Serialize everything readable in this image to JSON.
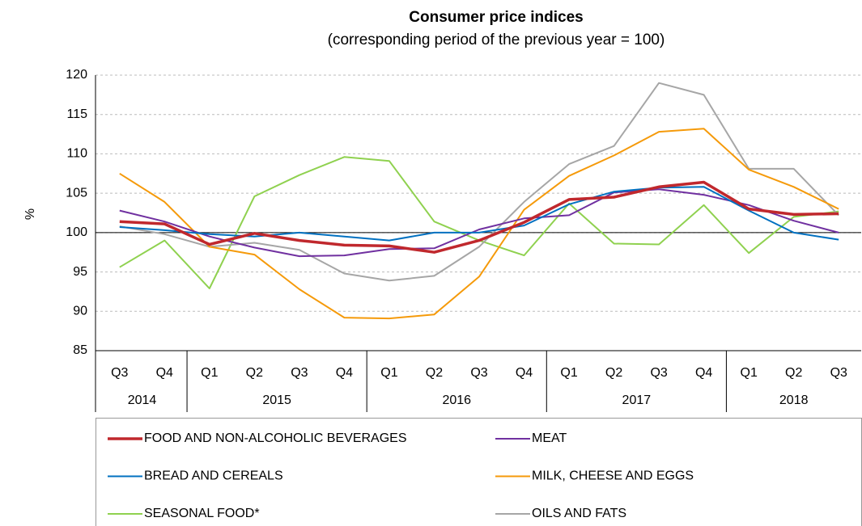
{
  "chart_data": {
    "type": "line",
    "title": "Consumer price indices",
    "subtitle": "(corresponding period of the previous year = 100)",
    "y_label": "%",
    "categories": [
      "Q3",
      "Q4",
      "Q1",
      "Q2",
      "Q3",
      "Q4",
      "Q1",
      "Q2",
      "Q3",
      "Q4",
      "Q1",
      "Q2",
      "Q3",
      "Q4",
      "Q1",
      "Q2",
      "Q3"
    ],
    "years": [
      "2014",
      "2015",
      "2016",
      "2017",
      "2018"
    ],
    "ylim": [
      85,
      120
    ],
    "yticks": [
      85,
      90,
      95,
      100,
      105,
      110,
      115,
      120
    ],
    "grid": true,
    "series": [
      {
        "name": "FOOD AND NON-ALCOHOLIC BEVERAGES",
        "color": "#c0282d",
        "values": [
          101.4,
          101.1,
          98.5,
          99.9,
          99.0,
          98.4,
          98.3,
          97.5,
          99.0,
          101.3,
          104.2,
          104.5,
          105.8,
          106.4,
          103.0,
          102.3,
          102.4
        ]
      },
      {
        "name": "MEAT",
        "color": "#7030a0",
        "values": [
          102.8,
          101.4,
          99.5,
          98.1,
          97.0,
          97.1,
          97.9,
          98.0,
          100.4,
          101.8,
          102.2,
          105.1,
          105.5,
          104.8,
          103.5,
          101.5,
          100.0
        ]
      },
      {
        "name": "BREAD AND CEREALS",
        "color": "#0070c0",
        "values": [
          100.7,
          100.3,
          99.8,
          99.5,
          100.0,
          99.5,
          99.0,
          100.0,
          100.0,
          100.9,
          103.6,
          105.2,
          105.7,
          105.8,
          102.8,
          100.0,
          99.1
        ]
      },
      {
        "name": "MILK, CHEESE AND EGGS",
        "color": "#f59a0a",
        "values": [
          107.5,
          103.9,
          98.2,
          97.2,
          92.8,
          89.2,
          89.1,
          89.6,
          94.4,
          102.9,
          107.2,
          109.8,
          112.8,
          113.2,
          108.0,
          105.8,
          103.0
        ]
      },
      {
        "name": "SEASONAL FOOD*",
        "color": "#8fd14f",
        "values": [
          95.6,
          99.0,
          92.9,
          104.6,
          107.3,
          109.6,
          109.1,
          101.4,
          99.0,
          97.1,
          103.7,
          98.6,
          98.5,
          103.5,
          97.4,
          102.0,
          102.7
        ]
      },
      {
        "name": "OILS AND FATS",
        "color": "#a6a6a6",
        "values": [
          100.8,
          99.8,
          98.2,
          98.7,
          97.8,
          94.8,
          93.9,
          94.5,
          98.2,
          103.9,
          108.7,
          111.0,
          119.0,
          117.5,
          108.1,
          108.1,
          102.2
        ]
      }
    ]
  }
}
